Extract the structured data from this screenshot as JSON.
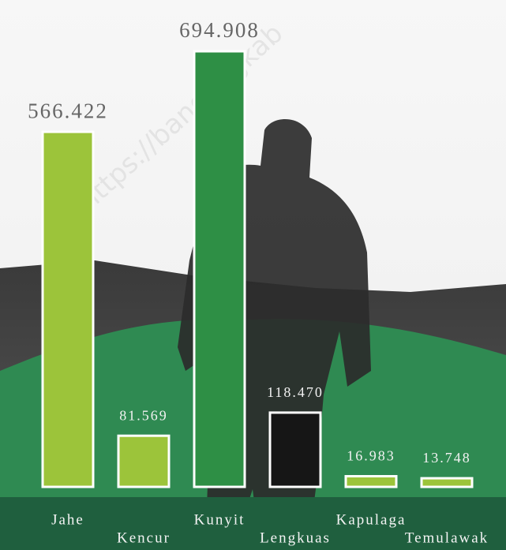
{
  "chart_data": {
    "type": "bar",
    "watermark": "https://bandungkab",
    "categories": [
      "Jahe",
      "Kencur",
      "Kunyit",
      "Lengkuas",
      "Kapulaga",
      "Temulawak"
    ],
    "values": [
      566422,
      81569,
      694908,
      118470,
      16983,
      13748
    ],
    "value_labels": [
      "566.422",
      "81.569",
      "694.908",
      "118.470",
      "16.983",
      "13.748"
    ],
    "colors": [
      "#9cc43a",
      "#9cc43a",
      "#2e8f45",
      "#161616",
      "#9cc43a",
      "#9cc43a"
    ]
  }
}
